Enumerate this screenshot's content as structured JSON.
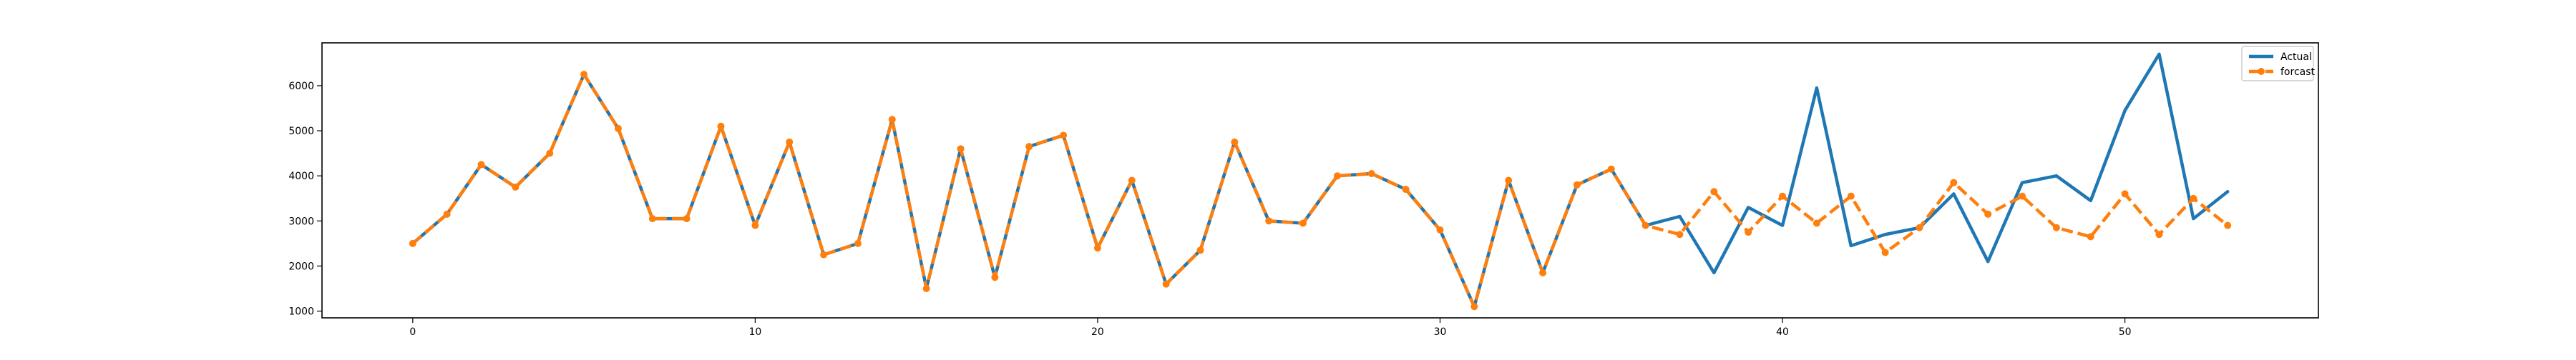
{
  "chart_data": {
    "type": "line",
    "title": "",
    "xlabel": "",
    "ylabel": "",
    "xlim": [
      -2.65,
      55.65
    ],
    "ylim": [
      850,
      6950
    ],
    "x_ticks": [
      0,
      10,
      20,
      30,
      40,
      50
    ],
    "y_ticks": [
      1000,
      2000,
      3000,
      4000,
      5000,
      6000
    ],
    "grid": false,
    "legend_position": "top-right",
    "x": [
      0,
      1,
      2,
      3,
      4,
      5,
      6,
      7,
      8,
      9,
      10,
      11,
      12,
      13,
      14,
      15,
      16,
      17,
      18,
      19,
      20,
      21,
      22,
      23,
      24,
      25,
      26,
      27,
      28,
      29,
      30,
      31,
      32,
      33,
      34,
      35,
      36,
      37,
      38,
      39,
      40,
      41,
      42,
      43,
      44,
      45,
      46,
      47,
      48,
      49,
      50,
      51,
      52,
      53
    ],
    "series": [
      {
        "name": "Actual",
        "color": "#1f77b4",
        "style": "solid",
        "marker": "none",
        "values": [
          2500,
          3150,
          4250,
          3750,
          4500,
          6250,
          5050,
          3050,
          3050,
          5100,
          2900,
          4750,
          2250,
          2500,
          5250,
          1500,
          4600,
          1750,
          4650,
          4900,
          2400,
          3900,
          1600,
          2350,
          4750,
          3000,
          2950,
          4000,
          4050,
          3700,
          2800,
          1100,
          3900,
          1850,
          3800,
          4150,
          2900,
          3100,
          1850,
          3300,
          2900,
          5950,
          2450,
          2700,
          2850,
          3600,
          2100,
          3850,
          4000,
          3450,
          5450,
          6700,
          3050,
          3650
        ]
      },
      {
        "name": "forcast",
        "color": "#ff7f0e",
        "style": "dashed",
        "marker": "circle",
        "values": [
          2500,
          3150,
          4250,
          3750,
          4500,
          6250,
          5050,
          3050,
          3050,
          5100,
          2900,
          4750,
          2250,
          2500,
          5250,
          1500,
          4600,
          1750,
          4650,
          4900,
          2400,
          3900,
          1600,
          2350,
          4750,
          3000,
          2950,
          4000,
          4050,
          3700,
          2800,
          1100,
          3900,
          1850,
          3800,
          4150,
          2900,
          2700,
          3650,
          2750,
          3550,
          2950,
          3550,
          2300,
          2850,
          3850,
          3150,
          3550,
          2850,
          2650,
          3600,
          2700,
          3500,
          2900
        ]
      }
    ]
  }
}
